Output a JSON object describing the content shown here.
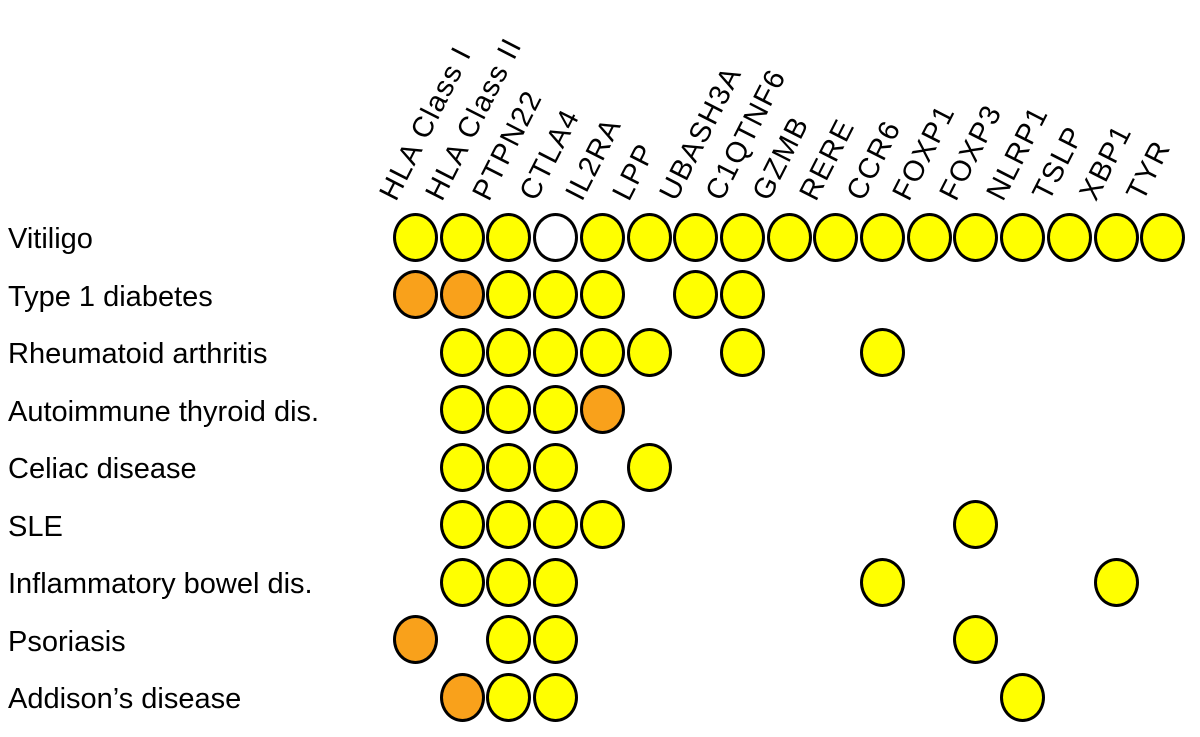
{
  "chart_data": {
    "type": "heatmap",
    "subtype": "dot-matrix",
    "title": "",
    "xlabel": "",
    "ylabel": "",
    "legend": "none",
    "columns": [
      "HLA Class I",
      "HLA Class II",
      "PTPN22",
      "CTLA4",
      "IL2RA",
      "LPP",
      "UBASH3A",
      "C1QTNF6",
      "GZMB",
      "RERE",
      "CCR6",
      "FOXP1",
      "FOXP3",
      "NLRP1",
      "TSLP",
      "XBP1",
      "TYR"
    ],
    "rows": [
      {
        "label": "Vitiligo",
        "cells": {
          "HLA Class I": "yellow",
          "HLA Class II": "yellow",
          "PTPN22": "yellow",
          "CTLA4": "white",
          "IL2RA": "yellow",
          "LPP": "yellow",
          "UBASH3A": "yellow",
          "C1QTNF6": "yellow",
          "GZMB": "yellow",
          "RERE": "yellow",
          "CCR6": "yellow",
          "FOXP1": "yellow",
          "FOXP3": "yellow",
          "NLRP1": "yellow",
          "TSLP": "yellow",
          "XBP1": "yellow",
          "TYR": "yellow"
        }
      },
      {
        "label": "Type 1 diabetes",
        "cells": {
          "HLA Class I": "orange",
          "HLA Class II": "orange",
          "PTPN22": "yellow",
          "CTLA4": "yellow",
          "IL2RA": "yellow",
          "UBASH3A": "yellow",
          "C1QTNF6": "yellow"
        }
      },
      {
        "label": "Rheumatoid arthritis",
        "cells": {
          "HLA Class II": "yellow",
          "PTPN22": "yellow",
          "CTLA4": "yellow",
          "IL2RA": "yellow",
          "LPP": "yellow",
          "C1QTNF6": "yellow",
          "CCR6": "yellow"
        }
      },
      {
        "label": "Autoimmune thyroid dis.",
        "cells": {
          "HLA Class II": "yellow",
          "PTPN22": "yellow",
          "CTLA4": "yellow",
          "IL2RA": "orange"
        }
      },
      {
        "label": "Celiac disease",
        "cells": {
          "HLA Class II": "yellow",
          "PTPN22": "yellow",
          "CTLA4": "yellow",
          "LPP": "yellow"
        }
      },
      {
        "label": "SLE",
        "cells": {
          "HLA Class II": "yellow",
          "PTPN22": "yellow",
          "CTLA4": "yellow",
          "IL2RA": "yellow",
          "FOXP3": "yellow"
        }
      },
      {
        "label": "Inflammatory bowel dis.",
        "cells": {
          "HLA Class II": "yellow",
          "PTPN22": "yellow",
          "CTLA4": "yellow",
          "CCR6": "yellow",
          "XBP1": "yellow"
        }
      },
      {
        "label": "Psoriasis",
        "cells": {
          "HLA Class I": "orange",
          "PTPN22": "yellow",
          "CTLA4": "yellow",
          "FOXP3": "yellow"
        }
      },
      {
        "label": "Addison’s disease",
        "cells": {
          "HLA Class II": "orange",
          "PTPN22": "yellow",
          "CTLA4": "yellow",
          "NLRP1": "yellow"
        }
      }
    ],
    "colors": {
      "yellow": "#FFFF00",
      "orange": "#F9A11B",
      "white": "#FFFFFF",
      "outline": "#000000"
    }
  }
}
